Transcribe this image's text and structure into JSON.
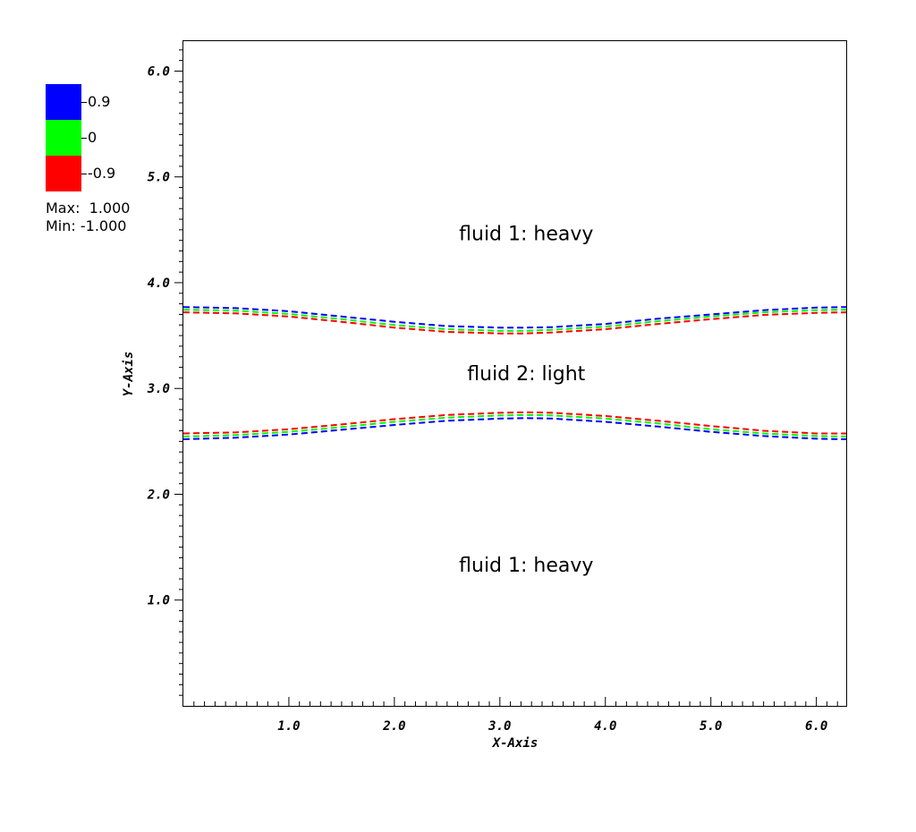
{
  "chart_data": {
    "type": "line",
    "title": "",
    "xlabel": "X-Axis",
    "ylabel": "Y-Axis",
    "xlim": [
      0.0,
      6.283
    ],
    "ylim": [
      0.0,
      6.283
    ],
    "x_ticks": [
      "1.0",
      "2.0",
      "3.0",
      "4.0",
      "5.0",
      "6.0"
    ],
    "y_ticks": [
      "1.0",
      "2.0",
      "3.0",
      "4.0",
      "5.0",
      "6.0"
    ],
    "grid": false,
    "legend": {
      "entries": [
        {
          "label": "0.9",
          "color": "#0000ff"
        },
        {
          "label": "0",
          "color": "#00ff00"
        },
        {
          "label": "-0.9",
          "color": "#ff0000"
        }
      ],
      "max_label": "Max:  1.000",
      "min_label": "Min: -1.000",
      "placement": "top-left-outside"
    },
    "annotations": [
      {
        "text": "fluid 1: heavy",
        "x": 3.25,
        "y": 4.4
      },
      {
        "text": "fluid 2: light",
        "x": 3.25,
        "y": 3.08
      },
      {
        "text": "fluid 1: heavy",
        "x": 3.25,
        "y": 1.27
      }
    ],
    "series": [
      {
        "name": "0.9",
        "color": "#0000ff",
        "style": "dashed",
        "x": [
          0.0,
          0.5,
          1.0,
          1.5,
          2.0,
          2.5,
          3.0,
          3.25,
          3.5,
          4.0,
          4.5,
          5.0,
          5.5,
          6.0,
          6.283
        ],
        "y": [
          3.77,
          3.76,
          3.73,
          3.68,
          3.63,
          3.59,
          3.575,
          3.575,
          3.58,
          3.61,
          3.66,
          3.7,
          3.74,
          3.765,
          3.77
        ]
      },
      {
        "name": "0",
        "color": "#00ff00",
        "style": "dashed",
        "x": [
          0.0,
          0.5,
          1.0,
          1.5,
          2.0,
          2.5,
          3.0,
          3.25,
          3.5,
          4.0,
          4.5,
          5.0,
          5.5,
          6.0,
          6.283
        ],
        "y": [
          3.745,
          3.735,
          3.705,
          3.655,
          3.6,
          3.56,
          3.545,
          3.545,
          3.555,
          3.585,
          3.635,
          3.68,
          3.72,
          3.74,
          3.745
        ]
      },
      {
        "name": "-0.9",
        "color": "#ff0000",
        "style": "dashed",
        "x": [
          0.0,
          0.5,
          1.0,
          1.5,
          2.0,
          2.5,
          3.0,
          3.25,
          3.5,
          4.0,
          4.5,
          5.0,
          5.5,
          6.0,
          6.283
        ],
        "y": [
          3.72,
          3.71,
          3.68,
          3.63,
          3.575,
          3.535,
          3.52,
          3.52,
          3.53,
          3.56,
          3.61,
          3.655,
          3.695,
          3.715,
          3.72
        ]
      },
      {
        "name": "0.9",
        "color": "#0000ff",
        "style": "dashed",
        "x": [
          0.0,
          0.5,
          1.0,
          1.5,
          2.0,
          2.5,
          3.0,
          3.25,
          3.5,
          4.0,
          4.5,
          5.0,
          5.5,
          6.0,
          6.283
        ],
        "y": [
          2.52,
          2.535,
          2.565,
          2.61,
          2.655,
          2.695,
          2.715,
          2.72,
          2.715,
          2.685,
          2.64,
          2.59,
          2.55,
          2.525,
          2.52
        ]
      },
      {
        "name": "0",
        "color": "#00ff00",
        "style": "dashed",
        "x": [
          0.0,
          0.5,
          1.0,
          1.5,
          2.0,
          2.5,
          3.0,
          3.25,
          3.5,
          4.0,
          4.5,
          5.0,
          5.5,
          6.0,
          6.283
        ],
        "y": [
          2.545,
          2.56,
          2.59,
          2.635,
          2.685,
          2.725,
          2.745,
          2.75,
          2.745,
          2.715,
          2.67,
          2.615,
          2.575,
          2.55,
          2.545
        ]
      },
      {
        "name": "-0.9",
        "color": "#ff0000",
        "style": "dashed",
        "x": [
          0.0,
          0.5,
          1.0,
          1.5,
          2.0,
          2.5,
          3.0,
          3.25,
          3.5,
          4.0,
          4.5,
          5.0,
          5.5,
          6.0,
          6.283
        ],
        "y": [
          2.575,
          2.585,
          2.615,
          2.66,
          2.71,
          2.75,
          2.77,
          2.775,
          2.77,
          2.74,
          2.695,
          2.645,
          2.6,
          2.575,
          2.575
        ]
      }
    ]
  }
}
